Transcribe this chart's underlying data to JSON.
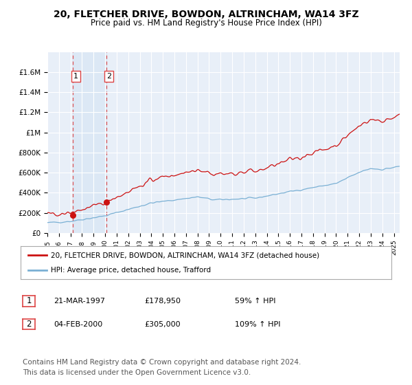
{
  "title": "20, FLETCHER DRIVE, BOWDON, ALTRINCHAM, WA14 3FZ",
  "subtitle": "Price paid vs. HM Land Registry's House Price Index (HPI)",
  "title_fontsize": 10,
  "subtitle_fontsize": 8.5,
  "ylim": [
    0,
    1800000
  ],
  "yticks": [
    0,
    200000,
    400000,
    600000,
    800000,
    1000000,
    1200000,
    1400000,
    1600000
  ],
  "ytick_labels": [
    "£0",
    "£200K",
    "£400K",
    "£600K",
    "£800K",
    "£1M",
    "£1.2M",
    "£1.4M",
    "£1.6M"
  ],
  "xtick_years": [
    1995,
    1996,
    1997,
    1998,
    1999,
    2000,
    2001,
    2002,
    2003,
    2004,
    2005,
    2006,
    2007,
    2008,
    2009,
    2010,
    2011,
    2012,
    2013,
    2014,
    2015,
    2016,
    2017,
    2018,
    2019,
    2020,
    2021,
    2022,
    2023,
    2024,
    2025
  ],
  "transactions": [
    {
      "date_num": 1997.22,
      "price": 178950,
      "label": "1"
    },
    {
      "date_num": 2000.09,
      "price": 305000,
      "label": "2"
    }
  ],
  "hpi_color": "#7ab0d4",
  "price_color": "#cc1111",
  "vline_color": "#dd4444",
  "shade_color": "#dce8f5",
  "bg_color": "#e8eff8",
  "grid_color": "#ffffff",
  "legend_entries": [
    "20, FLETCHER DRIVE, BOWDON, ALTRINCHAM, WA14 3FZ (detached house)",
    "HPI: Average price, detached house, Trafford"
  ],
  "table_rows": [
    {
      "num": "1",
      "date": "21-MAR-1997",
      "price": "£178,950",
      "change": "59% ↑ HPI"
    },
    {
      "num": "2",
      "date": "04-FEB-2000",
      "price": "£305,000",
      "change": "109% ↑ HPI"
    }
  ],
  "footer": "Contains HM Land Registry data © Crown copyright and database right 2024.\nThis data is licensed under the Open Government Licence v3.0.",
  "footer_fontsize": 7.5
}
